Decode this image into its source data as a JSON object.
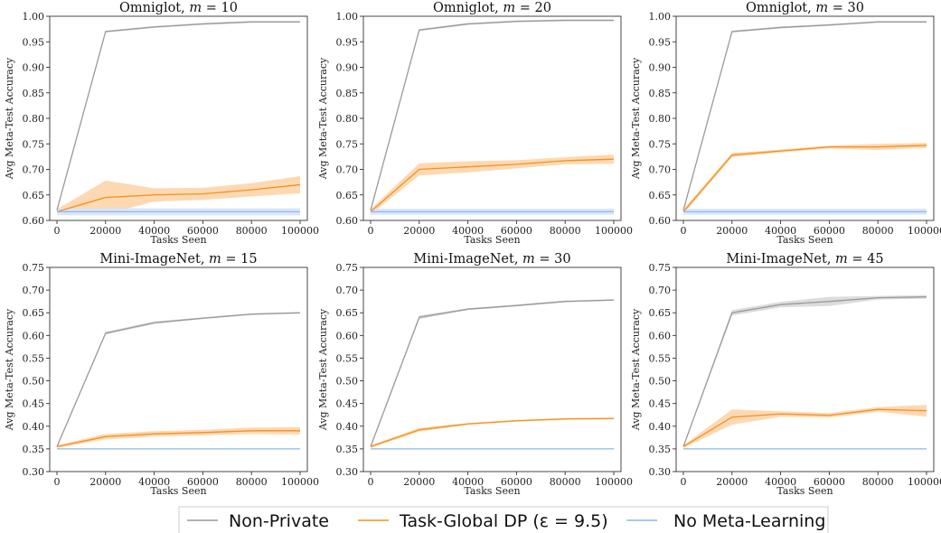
{
  "colors": {
    "non_private": "#9a9a9a",
    "task_global_dp": "#f5901e",
    "task_global_dp_band": "#fdd2a6",
    "no_meta_learning": "#8fb6f2",
    "no_meta_learning_band": "#d6e4fb"
  },
  "legend": {
    "items": [
      {
        "key": "non_private",
        "label": "Non-Private"
      },
      {
        "key": "task_global_dp",
        "label": "Task-Global DP (ε = 9.5)"
      },
      {
        "key": "no_meta_learning",
        "label": "No Meta-Learning"
      }
    ]
  },
  "chart_data": [
    {
      "type": "line",
      "title": "Omniglot, m = 10",
      "xlabel": "Tasks Seen",
      "ylabel": "Avg Meta-Test Accuracy",
      "x": [
        0,
        20000,
        40000,
        60000,
        80000,
        100000
      ],
      "xticks": [
        "0",
        "20000",
        "40000",
        "60000",
        "80000",
        "100000"
      ],
      "yticks": [
        "0.60",
        "0.65",
        "0.70",
        "0.75",
        "0.80",
        "0.85",
        "0.90",
        "0.95",
        "1.00"
      ],
      "ylim": [
        0.6,
        1.0
      ],
      "series": [
        {
          "name": "Non-Private",
          "values": [
            0.62,
            0.97,
            0.979,
            0.985,
            0.989,
            0.989
          ],
          "band": [
            0.002,
            0.002,
            0.002,
            0.002,
            0.002,
            0.002
          ]
        },
        {
          "name": "Task-Global DP (ε = 9.5)",
          "values": [
            0.617,
            0.645,
            0.65,
            0.652,
            0.66,
            0.67
          ],
          "band": [
            0.005,
            0.033,
            0.013,
            0.012,
            0.013,
            0.017
          ]
        },
        {
          "name": "No Meta-Learning",
          "values": [
            0.617,
            0.617,
            0.617,
            0.617,
            0.617,
            0.617
          ],
          "band": [
            0.007,
            0.007,
            0.007,
            0.007,
            0.007,
            0.007
          ]
        }
      ]
    },
    {
      "type": "line",
      "title": "Omniglot, m = 20",
      "xlabel": "Tasks Seen",
      "ylabel": "Avg Meta-Test Accuracy",
      "x": [
        0,
        20000,
        40000,
        60000,
        80000,
        100000
      ],
      "xticks": [
        "0",
        "20000",
        "40000",
        "60000",
        "80000",
        "100000"
      ],
      "yticks": [
        "0.60",
        "0.65",
        "0.70",
        "0.75",
        "0.80",
        "0.85",
        "0.90",
        "0.95",
        "1.00"
      ],
      "ylim": [
        0.6,
        1.0
      ],
      "series": [
        {
          "name": "Non-Private",
          "values": [
            0.62,
            0.973,
            0.985,
            0.99,
            0.992,
            0.992
          ],
          "band": [
            0.002,
            0.002,
            0.002,
            0.002,
            0.002,
            0.002
          ]
        },
        {
          "name": "Task-Global DP (ε = 9.5)",
          "values": [
            0.617,
            0.7,
            0.705,
            0.71,
            0.717,
            0.72
          ],
          "band": [
            0.005,
            0.012,
            0.011,
            0.008,
            0.007,
            0.009
          ]
        },
        {
          "name": "No Meta-Learning",
          "values": [
            0.617,
            0.617,
            0.617,
            0.617,
            0.617,
            0.617
          ],
          "band": [
            0.006,
            0.006,
            0.006,
            0.006,
            0.006,
            0.006
          ]
        }
      ]
    },
    {
      "type": "line",
      "title": "Omniglot, m = 30",
      "xlabel": "Tasks Seen",
      "ylabel": "Avg Meta-Test Accuracy",
      "x": [
        0,
        20000,
        40000,
        60000,
        80000,
        100000
      ],
      "xticks": [
        "0",
        "20000",
        "40000",
        "60000",
        "80000",
        "100000"
      ],
      "yticks": [
        "0.60",
        "0.65",
        "0.70",
        "0.75",
        "0.80",
        "0.85",
        "0.90",
        "0.95",
        "1.00"
      ],
      "ylim": [
        0.6,
        1.0
      ],
      "series": [
        {
          "name": "Non-Private",
          "values": [
            0.62,
            0.97,
            0.978,
            0.983,
            0.989,
            0.989
          ],
          "band": [
            0.002,
            0.002,
            0.002,
            0.002,
            0.002,
            0.002
          ]
        },
        {
          "name": "Task-Global DP (ε = 9.5)",
          "values": [
            0.617,
            0.728,
            0.736,
            0.744,
            0.744,
            0.747
          ],
          "band": [
            0.005,
            0.004,
            0.003,
            0.003,
            0.006,
            0.005
          ]
        },
        {
          "name": "No Meta-Learning",
          "values": [
            0.617,
            0.617,
            0.617,
            0.617,
            0.617,
            0.617
          ],
          "band": [
            0.006,
            0.006,
            0.006,
            0.006,
            0.006,
            0.006
          ]
        }
      ]
    },
    {
      "type": "line",
      "title": "Mini-ImageNet, m = 15",
      "xlabel": "Tasks Seen",
      "ylabel": "Avg Meta-Test Accuracy",
      "x": [
        0,
        20000,
        40000,
        60000,
        80000,
        100000
      ],
      "xticks": [
        "0",
        "20000",
        "40000",
        "60000",
        "80000",
        "100000"
      ],
      "yticks": [
        "0.30",
        "0.35",
        "0.40",
        "0.45",
        "0.50",
        "0.55",
        "0.60",
        "0.65",
        "0.70",
        "0.75"
      ],
      "ylim": [
        0.3,
        0.75
      ],
      "series": [
        {
          "name": "Non-Private",
          "values": [
            0.355,
            0.605,
            0.628,
            0.638,
            0.647,
            0.65
          ],
          "band": [
            0.002,
            0.003,
            0.003,
            0.002,
            0.002,
            0.002
          ]
        },
        {
          "name": "Task-Global DP (ε = 9.5)",
          "values": [
            0.355,
            0.377,
            0.383,
            0.386,
            0.39,
            0.39
          ],
          "band": [
            0.003,
            0.006,
            0.006,
            0.006,
            0.007,
            0.008
          ]
        },
        {
          "name": "No Meta-Learning",
          "values": [
            0.35,
            0.35,
            0.35,
            0.35,
            0.35,
            0.35
          ],
          "band": [
            0.001,
            0.001,
            0.001,
            0.001,
            0.001,
            0.001
          ]
        }
      ]
    },
    {
      "type": "line",
      "title": "Mini-ImageNet, m = 30",
      "xlabel": "Tasks Seen",
      "ylabel": "Avg Meta-Test Accuracy",
      "x": [
        0,
        20000,
        40000,
        60000,
        80000,
        100000
      ],
      "xticks": [
        "0",
        "20000",
        "40000",
        "60000",
        "80000",
        "100000"
      ],
      "yticks": [
        "0.30",
        "0.35",
        "0.40",
        "0.45",
        "0.50",
        "0.55",
        "0.60",
        "0.65",
        "0.70",
        "0.75"
      ],
      "ylim": [
        0.3,
        0.75
      ],
      "series": [
        {
          "name": "Non-Private",
          "values": [
            0.355,
            0.64,
            0.658,
            0.666,
            0.675,
            0.678
          ],
          "band": [
            0.002,
            0.004,
            0.002,
            0.002,
            0.002,
            0.002
          ]
        },
        {
          "name": "Task-Global DP (ε = 9.5)",
          "values": [
            0.355,
            0.392,
            0.405,
            0.412,
            0.416,
            0.417
          ],
          "band": [
            0.003,
            0.004,
            0.002,
            0.002,
            0.002,
            0.002
          ]
        },
        {
          "name": "No Meta-Learning",
          "values": [
            0.35,
            0.35,
            0.35,
            0.35,
            0.35,
            0.35
          ],
          "band": [
            0.001,
            0.001,
            0.001,
            0.001,
            0.001,
            0.001
          ]
        }
      ]
    },
    {
      "type": "line",
      "title": "Mini-ImageNet, m = 45",
      "xlabel": "Tasks Seen",
      "ylabel": "Avg Meta-Test Accuracy",
      "x": [
        0,
        20000,
        40000,
        60000,
        80000,
        100000
      ],
      "xticks": [
        "0",
        "20000",
        "40000",
        "60000",
        "80000",
        "100000"
      ],
      "yticks": [
        "0.30",
        "0.35",
        "0.40",
        "0.45",
        "0.50",
        "0.55",
        "0.60",
        "0.65",
        "0.70",
        "0.75"
      ],
      "ylim": [
        0.3,
        0.75
      ],
      "series": [
        {
          "name": "Non-Private",
          "values": [
            0.355,
            0.65,
            0.668,
            0.675,
            0.683,
            0.685
          ],
          "band": [
            0.002,
            0.006,
            0.006,
            0.01,
            0.004,
            0.004
          ]
        },
        {
          "name": "Task-Global DP (ε = 9.5)",
          "values": [
            0.355,
            0.42,
            0.427,
            0.424,
            0.437,
            0.434
          ],
          "band": [
            0.003,
            0.017,
            0.006,
            0.005,
            0.005,
            0.013
          ]
        },
        {
          "name": "No Meta-Learning",
          "values": [
            0.35,
            0.35,
            0.35,
            0.35,
            0.35,
            0.35
          ],
          "band": [
            0.001,
            0.001,
            0.001,
            0.001,
            0.001,
            0.001
          ]
        }
      ]
    }
  ]
}
